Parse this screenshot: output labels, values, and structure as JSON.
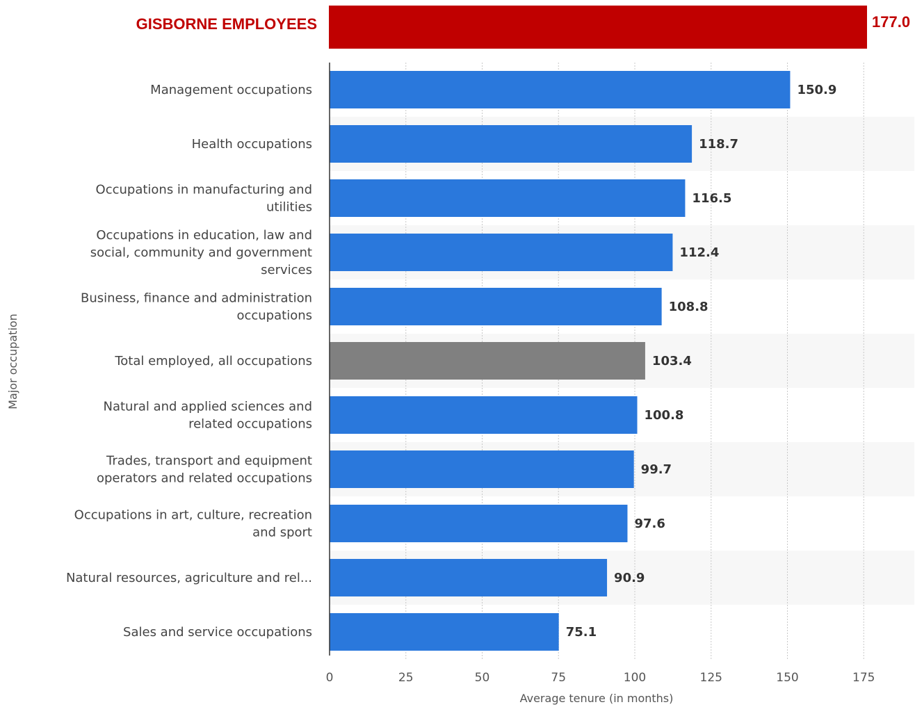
{
  "highlight": {
    "label": "GISBORNE EMPLOYEES",
    "value": 177.0,
    "value_text": "177.0",
    "color": "#c00000"
  },
  "chart_data": {
    "type": "bar",
    "orientation": "horizontal",
    "categories": [
      "Management occupations",
      "Health occupations",
      "Occupations in manufacturing and utilities",
      "Occupations in education, law and social, community and government services",
      "Business, finance and administration occupations",
      "Total employed, all occupations",
      "Natural and applied sciences and related occupations",
      "Trades, transport and equipment operators and related occupations",
      "Occupations in art, culture, recreation and sport",
      "Natural resources, agriculture and rel...",
      "Sales and service occupations"
    ],
    "category_lines": [
      [
        "Management occupations"
      ],
      [
        "Health occupations"
      ],
      [
        "Occupations in manufacturing and",
        "utilities"
      ],
      [
        "Occupations in education, law and",
        "social, community and government",
        "services"
      ],
      [
        "Business, finance and administration",
        "occupations"
      ],
      [
        "Total employed, all occupations"
      ],
      [
        "Natural and applied sciences and",
        "related occupations"
      ],
      [
        "Trades, transport and equipment",
        "operators and related occupations"
      ],
      [
        "Occupations in art, culture, recreation",
        "and sport"
      ],
      [
        "Natural resources, agriculture and rel..."
      ],
      [
        "Sales and service occupations"
      ]
    ],
    "values": [
      150.9,
      118.7,
      116.5,
      112.4,
      108.8,
      103.4,
      100.8,
      99.7,
      97.6,
      90.9,
      75.1
    ],
    "value_labels": [
      "150.9",
      "118.7",
      "116.5",
      "112.4",
      "108.8",
      "103.4",
      "100.8",
      "99.7",
      "97.6",
      "90.9",
      "75.1"
    ],
    "bar_colors": [
      "#2a78dc",
      "#2a78dc",
      "#2a78dc",
      "#2a78dc",
      "#2a78dc",
      "#808080",
      "#2a78dc",
      "#2a78dc",
      "#2a78dc",
      "#2a78dc",
      "#2a78dc"
    ],
    "xlim": [
      0,
      177
    ],
    "xticks": [
      0,
      25,
      50,
      75,
      100,
      125,
      150,
      175
    ],
    "xlabel": "Average tenure (in months)",
    "ylabel": "Major occupation",
    "grid": true
  }
}
